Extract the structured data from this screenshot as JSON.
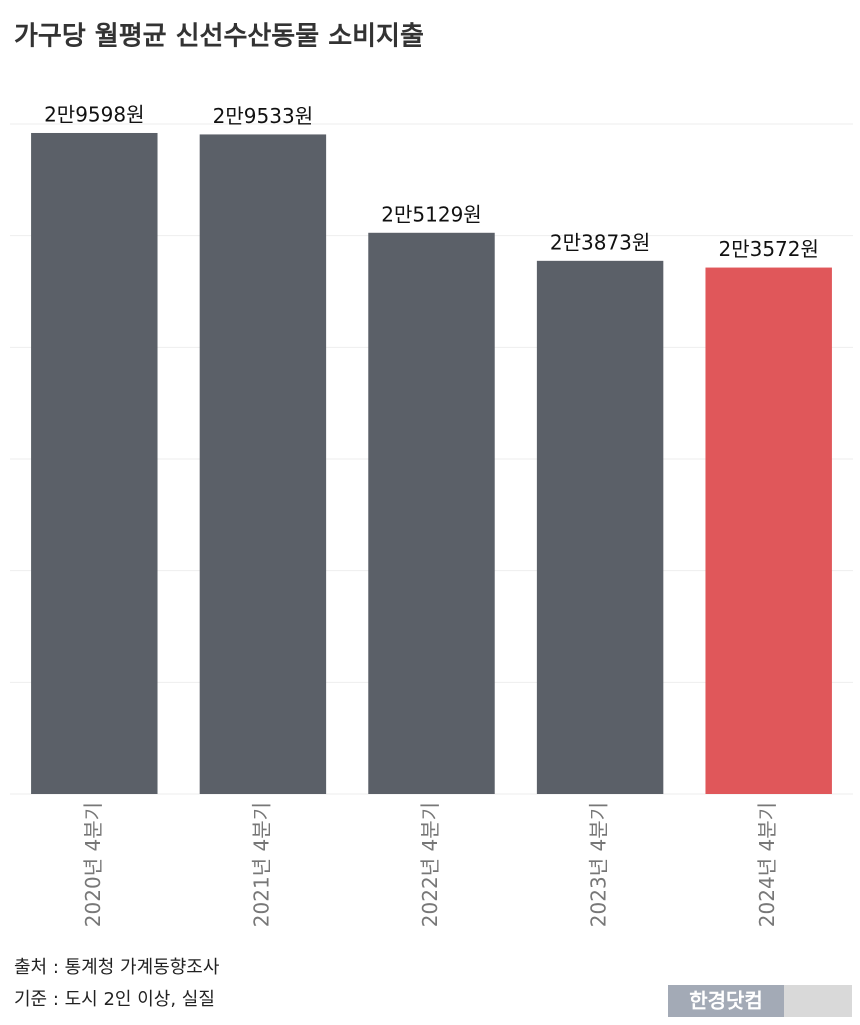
{
  "chart_data": {
    "type": "bar",
    "title": "가구당 월평균 신선수산동물 소비지출",
    "categories": [
      "2020년 4분기",
      "2021년 4분기",
      "2022년 4분기",
      "2023년 4분기",
      "2024년 4분기"
    ],
    "values": [
      29598,
      29533,
      25129,
      23873,
      23572
    ],
    "value_labels": [
      "2만9598원",
      "2만9533원",
      "2만5129원",
      "2만3873원",
      "2만3572원"
    ],
    "colors": [
      "#5b6068",
      "#5b6068",
      "#5b6068",
      "#5b6068",
      "#e0575a"
    ],
    "ylim": [
      0,
      30000
    ],
    "yticks": [
      0,
      5000,
      10000,
      15000,
      20000,
      25000,
      30000
    ],
    "grid": true,
    "notes": [
      "출처 : 통계청 가계동향조사",
      "기준 : 도시 2인 이상, 실질"
    ],
    "logo": "한경닷컴"
  }
}
